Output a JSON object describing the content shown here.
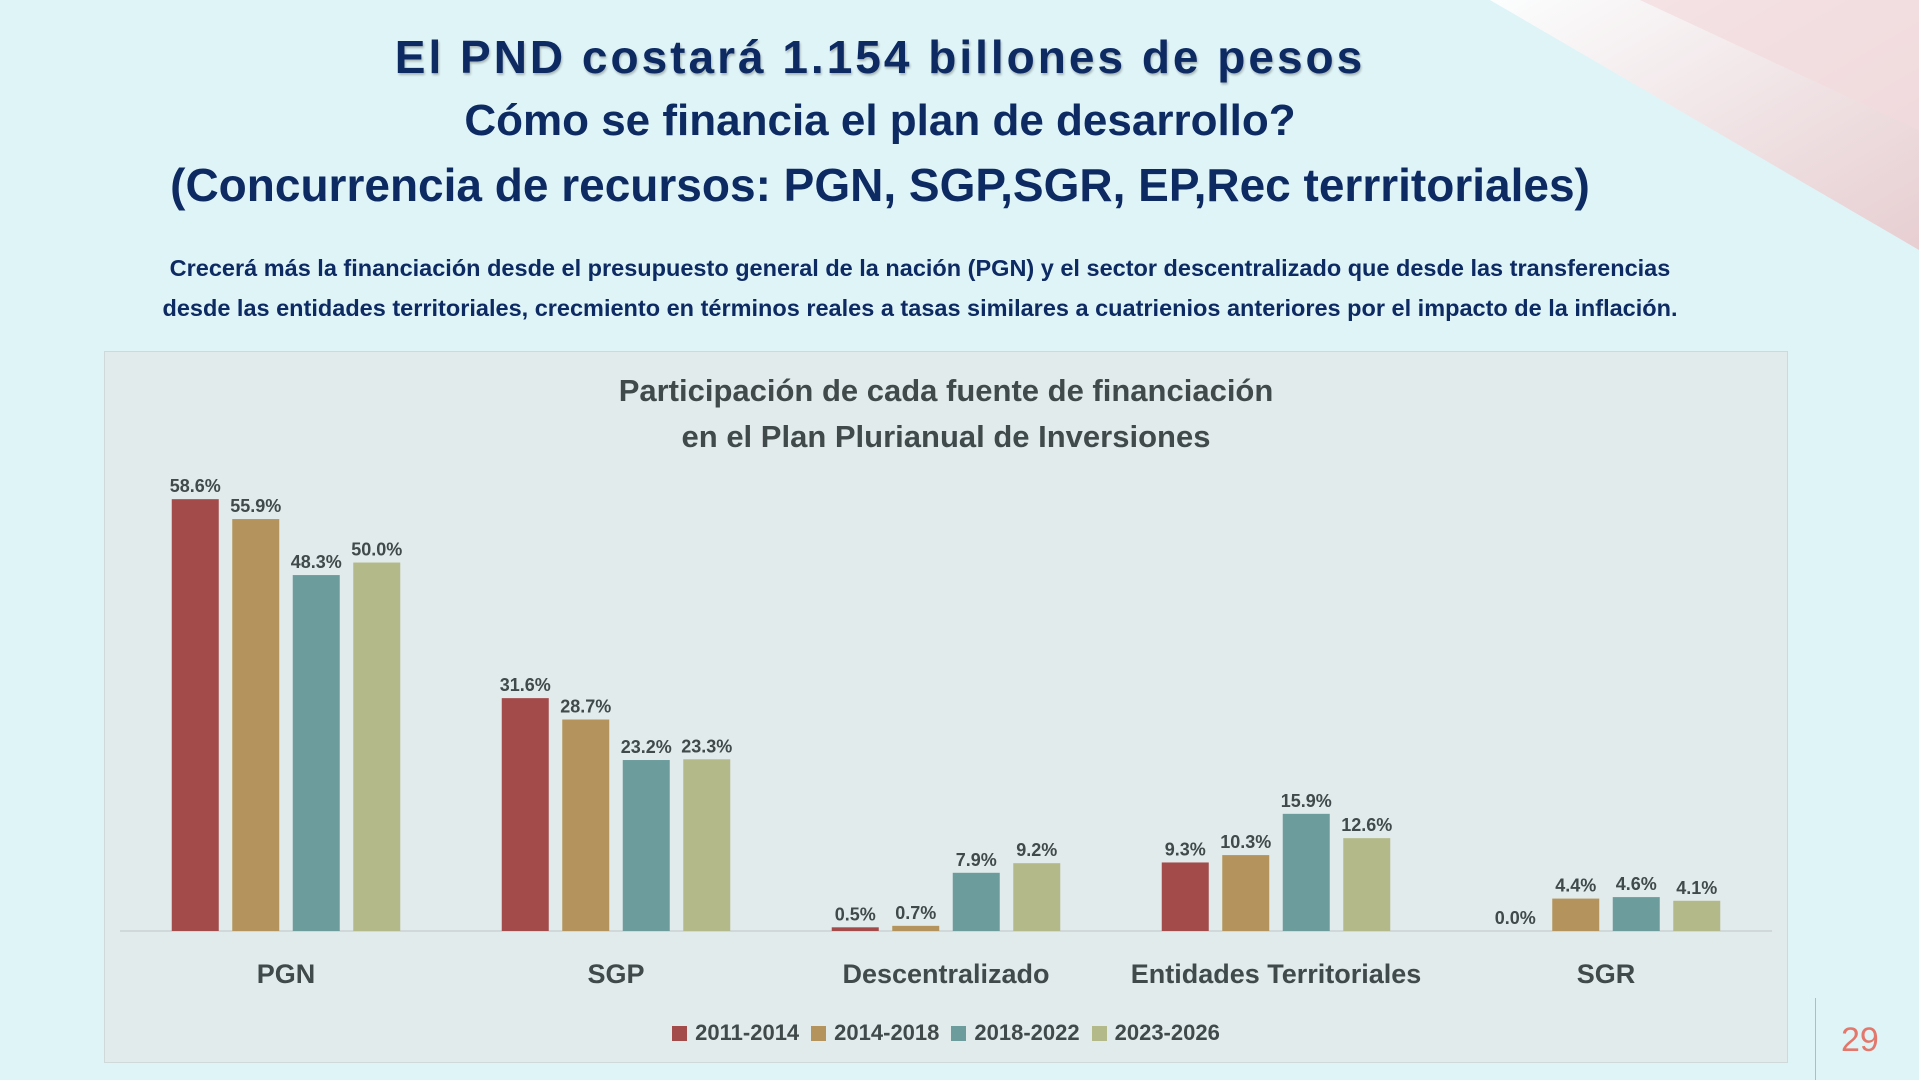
{
  "slide": {
    "title_line1": "El PND costará 1.154 billones de pesos",
    "title_line2": "Cómo se financia el plan de desarrollo?",
    "title_line3": "(Concurrencia de recursos: PGN, SGP,SGR, EP,Rec terrritoriales)",
    "subtitle_line1": "Crecerá más la financiación desde el  presupuesto general de la nación (PGN) y el sector descentralizado que desde las transferencias",
    "subtitle_line2": "desde las entidades territoriales, crecmiento en términos reales a tasas similares a cuatrienios anteriores por el  impacto de la inflación.",
    "page_number": "29"
  },
  "chart_data": {
    "type": "bar",
    "title_line1": "Participación de cada fuente de financiación",
    "title_line2": "en el Plan Plurianual de Inversiones",
    "categories": [
      "PGN",
      "SGP",
      "Descentralizado",
      "Entidades Territoriales",
      "SGR"
    ],
    "series": [
      {
        "name": "2011-2014",
        "color": "#a34a4a",
        "values": [
          58.6,
          31.6,
          0.5,
          9.3,
          0.0
        ]
      },
      {
        "name": "2014-2018",
        "color": "#b4945c",
        "values": [
          55.9,
          28.7,
          0.7,
          10.3,
          4.4
        ]
      },
      {
        "name": "2018-2022",
        "color": "#6c9c9c",
        "values": [
          48.3,
          23.2,
          7.9,
          15.9,
          4.6
        ]
      },
      {
        "name": "2023-2026",
        "color": "#b3b988",
        "values": [
          50.0,
          23.3,
          9.2,
          12.6,
          4.1
        ]
      }
    ],
    "value_suffix": "%",
    "ylim": [
      0,
      65
    ],
    "grid": false,
    "legend_position": "bottom"
  }
}
